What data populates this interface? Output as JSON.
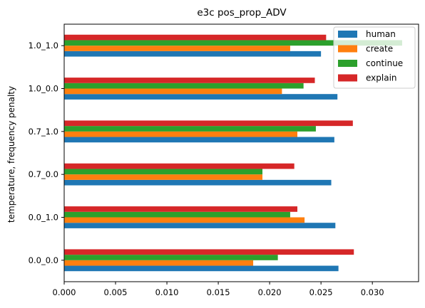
{
  "chart_data": {
    "type": "bar",
    "orientation": "horizontal",
    "title": "e3c pos_prop_ADV",
    "xlabel": "",
    "ylabel": "temperature, frequency penalty",
    "categories": [
      "0.0_0.0",
      "0.0_1.0",
      "0.7_0.0",
      "0.7_1.0",
      "1.0_0.0",
      "1.0_1.0"
    ],
    "series": [
      {
        "name": "human",
        "color": "#1f77b4",
        "values": [
          0.0267,
          0.0264,
          0.026,
          0.0263,
          0.0266,
          0.025
        ]
      },
      {
        "name": "create",
        "color": "#ff7f0e",
        "values": [
          0.0184,
          0.0234,
          0.0193,
          0.0227,
          0.0212,
          0.022
        ]
      },
      {
        "name": "continue",
        "color": "#2ca02c",
        "values": [
          0.0208,
          0.022,
          0.0193,
          0.0245,
          0.0233,
          0.0329
        ]
      },
      {
        "name": "explain",
        "color": "#d62728",
        "values": [
          0.0282,
          0.0227,
          0.0224,
          0.0281,
          0.0244,
          0.0255
        ]
      }
    ],
    "xlim": [
      0,
      0.0345
    ],
    "xticks": [
      "0.000",
      "0.005",
      "0.010",
      "0.015",
      "0.020",
      "0.025",
      "0.030"
    ],
    "legend_position": "top-right",
    "grid": false
  }
}
